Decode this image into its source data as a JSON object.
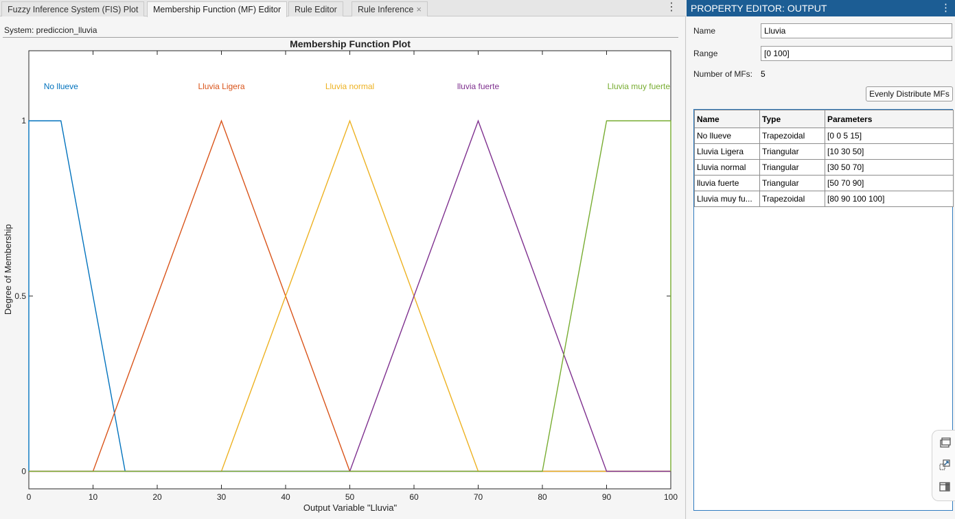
{
  "tabs": [
    {
      "label": "Fuzzy Inference System (FIS) Plot",
      "active": false
    },
    {
      "label": "Membership Function (MF) Editor",
      "active": true
    },
    {
      "label": "Rule Editor",
      "active": false
    },
    {
      "label": "Rule Inference",
      "active": false,
      "closable": true
    }
  ],
  "tab_close_glyph": "×",
  "more_glyph": "⋮",
  "system_label": "System: prediccion_lluvia",
  "chart_data": {
    "type": "line",
    "title": "Membership Function Plot",
    "xlabel": "Output Variable \"Lluvia\"",
    "ylabel": "Degree of Membership",
    "xlim": [
      0,
      100
    ],
    "ylim": [
      -0.05,
      1.2
    ],
    "xticks": [
      0,
      10,
      20,
      30,
      40,
      50,
      60,
      70,
      80,
      90,
      100
    ],
    "xtick_labels": [
      "0",
      "10",
      "20",
      "30",
      "40",
      "50",
      "60",
      "70",
      "80",
      "90",
      "100"
    ],
    "yticks": [
      0,
      0.5,
      1
    ],
    "ytick_labels": [
      "0",
      "0.5",
      "1"
    ],
    "grid": false,
    "series": [
      {
        "name": "No llueve",
        "color": "#0072bd",
        "x": [
          0,
          0,
          5,
          15,
          100
        ],
        "y": [
          0,
          1,
          1,
          0,
          0
        ],
        "label_x": 5
      },
      {
        "name": "Lluvia Ligera",
        "color": "#d95319",
        "x": [
          0,
          10,
          30,
          50,
          100
        ],
        "y": [
          0,
          0,
          1,
          0,
          0
        ],
        "label_x": 30
      },
      {
        "name": "Lluvia normal",
        "color": "#edb120",
        "x": [
          0,
          30,
          50,
          70,
          100
        ],
        "y": [
          0,
          0,
          1,
          0,
          0
        ],
        "label_x": 50
      },
      {
        "name": "lluvia fuerte",
        "color": "#7e2f8e",
        "x": [
          0,
          50,
          70,
          90,
          100
        ],
        "y": [
          0,
          0,
          1,
          0,
          0
        ],
        "label_x": 70
      },
      {
        "name": "Lluvia muy fuerte",
        "color": "#77ac30",
        "x": [
          0,
          80,
          90,
          100,
          100
        ],
        "y": [
          0,
          0,
          1,
          1,
          0
        ],
        "label_x": 95
      }
    ]
  },
  "property_editor": {
    "header": "PROPERTY EDITOR: OUTPUT",
    "name_label": "Name",
    "name_value": "Lluvia",
    "range_label": "Range",
    "range_value": "[0 100]",
    "nmf_label": "Number of MFs:",
    "nmf_value": "5",
    "evenly_button": "Evenly Distribute MFs",
    "table": {
      "columns": [
        "Name",
        "Type",
        "Parameters"
      ],
      "rows": [
        [
          "No llueve",
          "Trapezoidal",
          "[0 0 5 15]"
        ],
        [
          "Lluvia Ligera",
          "Triangular",
          "[10 30 50]"
        ],
        [
          "Lluvia normal",
          "Triangular",
          "[30 50 70]"
        ],
        [
          "lluvia fuerte",
          "Triangular",
          "[50 70 90]"
        ],
        [
          "Lluvia muy fu...",
          "Trapezoidal",
          "[80 90 100 100]"
        ]
      ]
    }
  },
  "toolbar_icons": [
    "undock-figure-icon",
    "export-plot-icon",
    "panel-layout-icon"
  ]
}
